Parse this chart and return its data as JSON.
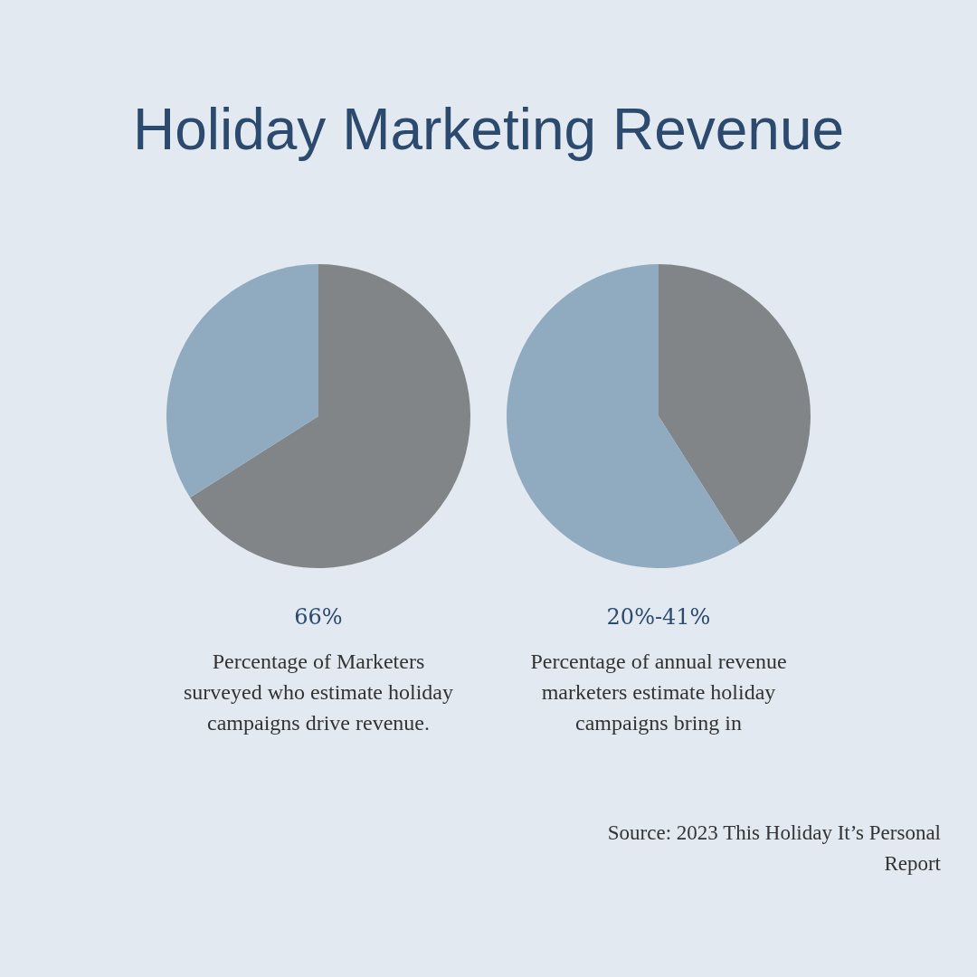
{
  "chart_data": [
    {
      "type": "pie",
      "title": "Holiday Marketing Revenue",
      "subtitle": "66%",
      "categories": [
        null,
        null
      ],
      "values": [
        66,
        34
      ],
      "colors": [
        "#828587",
        "#90abbf"
      ],
      "annotations": [
        "Percentage of Marketers surveyed who estimate holiday campaigns drive revenue."
      ]
    },
    {
      "type": "pie",
      "subtitle": "20%-41%",
      "categories": [
        null,
        null
      ],
      "values": [
        41,
        59
      ],
      "colors": [
        "#828587",
        "#90abbf"
      ],
      "annotations": [
        "Percentage of annual revenue marketers estimate holiday campaigns bring in",
        "Source: 2023 This Holiday It’s Personal Report"
      ]
    }
  ]
}
